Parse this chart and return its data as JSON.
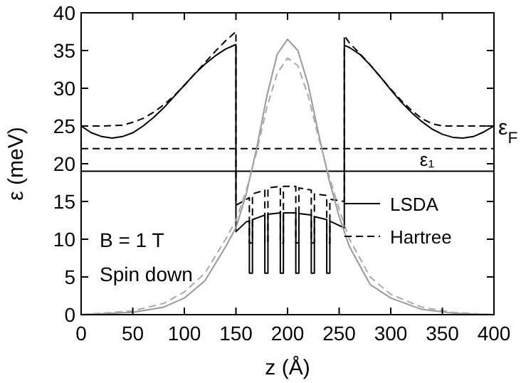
{
  "chart_data": {
    "type": "line",
    "xlabel": "z (Å)",
    "ylabel": "ε (meV)",
    "xlim": [
      0,
      400
    ],
    "ylim": [
      0,
      40
    ],
    "xticks": [
      0,
      50,
      100,
      150,
      200,
      250,
      300,
      350,
      400
    ],
    "yticks": [
      0,
      5,
      10,
      15,
      20,
      25,
      30,
      35,
      40
    ],
    "legend": "right",
    "grid": false,
    "annotations": [
      "B = 1 T",
      "Spin down",
      {
        "text": "ε$_{F}$",
        "x": 400,
        "y": 25
      }
    ],
    "ref_lines": [
      {
        "axis": "y",
        "value": 22,
        "label": "ε₁",
        "line_style": "dashed",
        "color": "#000000"
      },
      {
        "axis": "y",
        "value": 19,
        "label": null,
        "line_style": "solid",
        "color": "#000000"
      }
    ],
    "series": [
      {
        "name": "LSDA",
        "color": "#000000",
        "line_style": "solid",
        "x": [
          0,
          10,
          20,
          30,
          40,
          50,
          60,
          70,
          80,
          90,
          100,
          110,
          120,
          130,
          140,
          150,
          150,
          160,
          163,
          163,
          166,
          166,
          178,
          178,
          181,
          181,
          193,
          193,
          196,
          196,
          208,
          208,
          211,
          211,
          223,
          223,
          226,
          226,
          238,
          238,
          241,
          241,
          255,
          255,
          260,
          270,
          280,
          290,
          300,
          310,
          320,
          330,
          340,
          350,
          360,
          370,
          380,
          390,
          400
        ],
        "values": [
          25,
          24.1,
          23.6,
          23.4,
          23.6,
          24.1,
          25,
          26.1,
          27.4,
          28.9,
          30.4,
          31.9,
          33.2,
          34.3,
          35.2,
          35.8,
          11,
          12.3,
          12.4,
          5.5,
          5.5,
          12.6,
          13.2,
          5.5,
          5.5,
          13.3,
          13.5,
          5.5,
          5.5,
          13.5,
          13.5,
          5.5,
          5.5,
          13.4,
          13.2,
          5.5,
          5.5,
          13,
          12.6,
          5.5,
          5.5,
          12.4,
          11.5,
          35.7,
          35.4,
          34.5,
          33.1,
          31.5,
          29.8,
          28.2,
          26.8,
          25.6,
          24.6,
          23.9,
          23.5,
          23.4,
          23.6,
          24.2,
          25
        ]
      },
      {
        "name": "Hartree",
        "color": "#000000",
        "line_style": "dashed",
        "x": [
          0,
          20,
          40,
          50,
          60,
          70,
          80,
          90,
          100,
          110,
          120,
          130,
          140,
          150,
          150,
          163,
          163,
          166,
          166,
          178,
          178,
          181,
          181,
          193,
          193,
          196,
          196,
          208,
          208,
          211,
          211,
          223,
          223,
          226,
          226,
          238,
          238,
          241,
          241,
          255,
          255,
          260,
          270,
          280,
          290,
          300,
          310,
          320,
          330,
          340,
          350,
          400
        ],
        "values": [
          25,
          25,
          25.1,
          25.5,
          26,
          26.8,
          27.8,
          29,
          30.4,
          31.9,
          33.4,
          34.9,
          36.3,
          37.5,
          14.5,
          15.5,
          9.5,
          9.5,
          16,
          16.5,
          9.5,
          9.5,
          16.8,
          17,
          9.5,
          9.5,
          17,
          17,
          9.5,
          9.5,
          16.8,
          16.5,
          9.5,
          9.5,
          16,
          15.8,
          9.5,
          9.5,
          15.3,
          15,
          37,
          36,
          34.6,
          33.1,
          31.5,
          29.9,
          28.4,
          27.1,
          26,
          25.3,
          25,
          25
        ]
      },
      {
        "color": "#999999",
        "line_style": "solid",
        "x": [
          0,
          50,
          80,
          100,
          120,
          140,
          150,
          160,
          170,
          180,
          190,
          200,
          210,
          220,
          230,
          240,
          250,
          260,
          280,
          300,
          330,
          360,
          400
        ],
        "values": [
          0,
          0.3,
          1,
          2.2,
          4.5,
          9,
          11.5,
          16,
          22,
          29,
          34.5,
          36.5,
          35,
          30.5,
          24,
          18,
          13,
          9,
          4,
          2.2,
          0.7,
          0.2,
          0
        ]
      },
      {
        "color": "#aaaaaa",
        "line_style": "dashed",
        "x": [
          0,
          50,
          80,
          100,
          120,
          140,
          150,
          160,
          170,
          180,
          190,
          200,
          210,
          220,
          230,
          240,
          250,
          260,
          280,
          300,
          330,
          360,
          400
        ],
        "values": [
          0,
          0.5,
          1.5,
          3,
          5.5,
          10,
          12.5,
          16.5,
          21.5,
          27.5,
          32,
          34,
          33,
          29,
          23.5,
          18.5,
          14,
          10,
          5,
          2.7,
          1,
          0.3,
          0
        ]
      }
    ]
  }
}
